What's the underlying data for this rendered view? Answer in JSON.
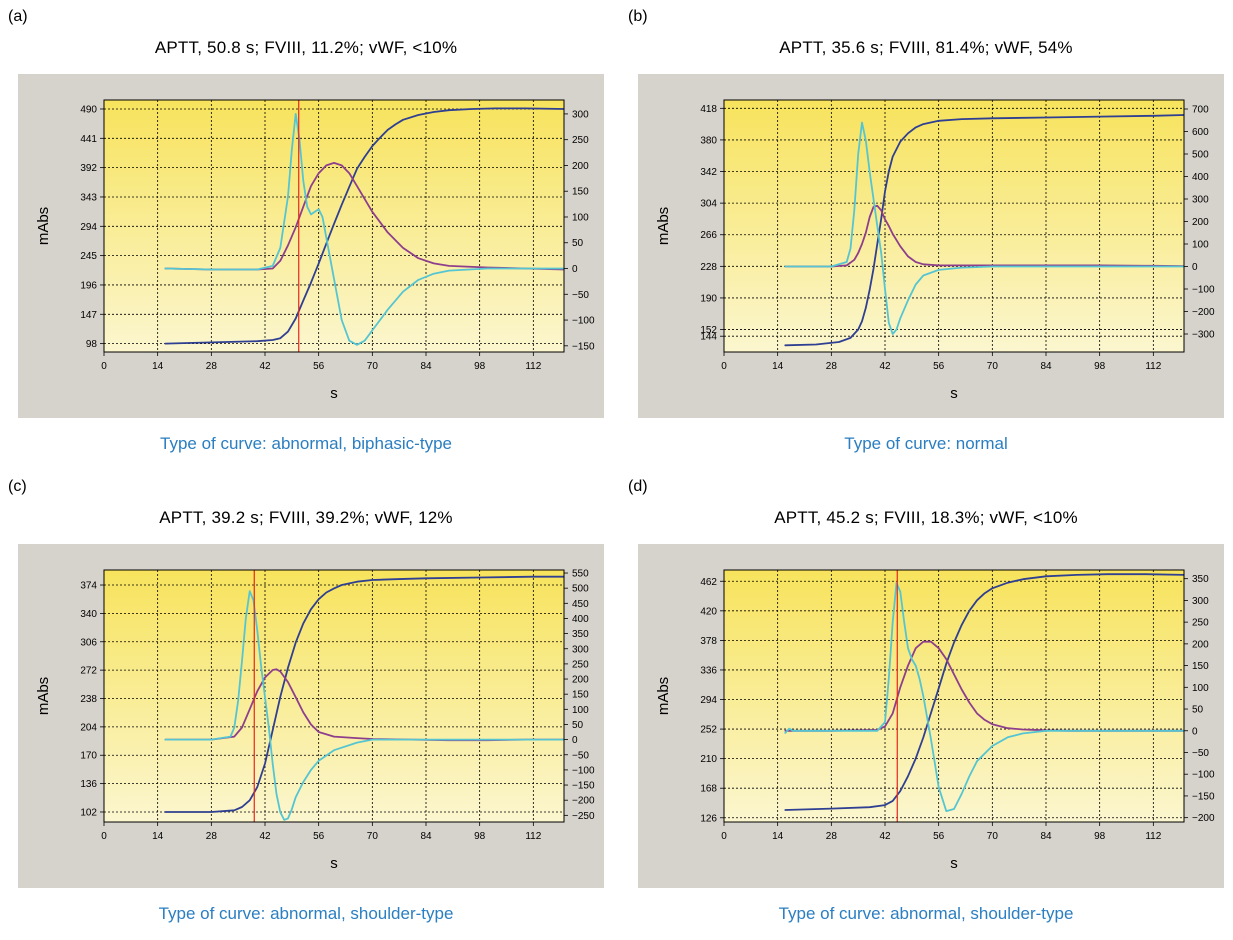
{
  "colors": {
    "frame_bg": "#d6d2cc",
    "plot_top": "#f7e35c",
    "plot_bottom": "#fbf6cf",
    "absorbance": "#2f3f91",
    "first_derivative": "#8e3f8c",
    "second_derivative": "#56c5d2",
    "marker": "#e8261c",
    "caption": "#2a7ec1"
  },
  "chart_data": [
    {
      "panel_label": "(a)",
      "type": "line",
      "title": "APTT, 50.8 s; FVIII, 11.2%; vWF, <10%",
      "caption": "Type of curve: abnormal, biphasic-type",
      "xlabel": "s",
      "ylabel": "mAbs",
      "xlim": [
        0,
        120
      ],
      "x_ticks": [
        "0",
        "14",
        "28",
        "42",
        "56",
        "70",
        "84",
        "98",
        "112"
      ],
      "y_left_lim": [
        84,
        505
      ],
      "y_left_ticks": [
        "98",
        "147",
        "196",
        "245",
        "294",
        "343",
        "392",
        "441",
        "490"
      ],
      "y_right_lim": [
        -162,
        327
      ],
      "y_right_ticks": [
        "-150",
        "-100",
        "-50",
        "0",
        "50",
        "100",
        "150",
        "200",
        "250",
        "300"
      ],
      "marker_x": 50.8,
      "series": [
        {
          "axis": "left",
          "color": "#2f3f91",
          "x": [
            16,
            28,
            40,
            44,
            46,
            48,
            50,
            52,
            54,
            56,
            58,
            60,
            62,
            64,
            66,
            68,
            70,
            72,
            74,
            76,
            78,
            82,
            86,
            90,
            96,
            102,
            110,
            120
          ],
          "y": [
            98,
            100,
            102,
            104,
            107,
            118,
            140,
            170,
            200,
            232,
            265,
            298,
            330,
            360,
            390,
            410,
            428,
            442,
            455,
            464,
            472,
            480,
            485,
            488,
            490,
            491,
            491,
            490
          ]
        },
        {
          "axis": "right",
          "color": "#8e3f8c",
          "x": [
            16,
            28,
            40,
            44,
            46,
            48,
            50,
            52,
            54,
            56,
            58,
            60,
            62,
            64,
            66,
            70,
            74,
            78,
            82,
            86,
            90,
            100,
            110,
            120
          ],
          "y": [
            0,
            -2,
            -2,
            0,
            15,
            45,
            80,
            120,
            160,
            185,
            200,
            205,
            200,
            185,
            160,
            110,
            70,
            40,
            20,
            10,
            5,
            2,
            0,
            -2
          ]
        },
        {
          "axis": "right",
          "color": "#56c5d2",
          "x": [
            16,
            28,
            40,
            44,
            46,
            48,
            49,
            50,
            51,
            52,
            53,
            54,
            55,
            56,
            57,
            58,
            60,
            62,
            64,
            66,
            68,
            70,
            74,
            78,
            82,
            86,
            90,
            100,
            110,
            120
          ],
          "y": [
            0,
            -2,
            -2,
            5,
            40,
            140,
            230,
            300,
            250,
            170,
            120,
            105,
            110,
            115,
            100,
            60,
            -20,
            -100,
            -140,
            -148,
            -140,
            -120,
            -80,
            -45,
            -22,
            -10,
            -4,
            0,
            0,
            0
          ]
        }
      ]
    },
    {
      "panel_label": "(b)",
      "type": "line",
      "title": "APTT, 35.6 s; FVIII, 81.4%; vWF, 54%",
      "caption": "Type of curve: normal",
      "xlabel": "s",
      "ylabel": "mAbs",
      "xlim": [
        0,
        120
      ],
      "x_ticks": [
        "0",
        "14",
        "28",
        "42",
        "56",
        "70",
        "84",
        "98",
        "112"
      ],
      "y_left_lim": [
        125,
        428
      ],
      "y_left_ticks": [
        "144",
        "152",
        "190",
        "228",
        "266",
        "304",
        "342",
        "380",
        "418"
      ],
      "y_right_lim": [
        -380,
        740
      ],
      "y_right_ticks": [
        "-300",
        "-200",
        "-100",
        "0",
        "100",
        "200",
        "300",
        "400",
        "500",
        "600",
        "700"
      ],
      "marker_x": null,
      "series": [
        {
          "axis": "left",
          "color": "#2f3f91",
          "x": [
            16,
            24,
            30,
            33,
            35,
            36,
            37,
            38,
            39,
            40,
            41,
            42,
            43,
            44,
            46,
            48,
            50,
            52,
            56,
            62,
            70,
            84,
            98,
            112,
            120
          ],
          "y": [
            133,
            134,
            137,
            142,
            152,
            162,
            178,
            200,
            225,
            255,
            285,
            318,
            342,
            360,
            378,
            388,
            395,
            399,
            403,
            405,
            406,
            407,
            408,
            409,
            410
          ]
        },
        {
          "axis": "right",
          "color": "#8e3f8c",
          "x": [
            16,
            28,
            32,
            34,
            35,
            36,
            37,
            38,
            39,
            40,
            41,
            42,
            43,
            44,
            46,
            48,
            50,
            52,
            56,
            70,
            84,
            98,
            112,
            120
          ],
          "y": [
            0,
            0,
            5,
            30,
            60,
            100,
            150,
            220,
            265,
            270,
            250,
            210,
            180,
            145,
            90,
            45,
            20,
            10,
            5,
            5,
            5,
            5,
            3,
            2
          ]
        },
        {
          "axis": "right",
          "color": "#56c5d2",
          "x": [
            16,
            28,
            32,
            33,
            34,
            35,
            36,
            37,
            38,
            39,
            40,
            41,
            42,
            43,
            44,
            45,
            46,
            48,
            50,
            52,
            56,
            62,
            70,
            84,
            98,
            120
          ],
          "y": [
            0,
            0,
            20,
            80,
            250,
            500,
            640,
            560,
            420,
            300,
            180,
            60,
            -100,
            -250,
            -300,
            -280,
            -230,
            -150,
            -80,
            -40,
            -15,
            -5,
            0,
            0,
            0,
            0
          ]
        }
      ]
    },
    {
      "panel_label": "(c)",
      "type": "line",
      "title": "APTT, 39.2 s; FVIII, 39.2%; vWF, 12%",
      "caption": "Type of curve: abnormal, shoulder-type",
      "xlabel": "s",
      "ylabel": "mAbs",
      "xlim": [
        0,
        120
      ],
      "x_ticks": [
        "0",
        "14",
        "28",
        "42",
        "56",
        "70",
        "84",
        "98",
        "112"
      ],
      "y_left_lim": [
        90,
        392
      ],
      "y_left_ticks": [
        "102",
        "136",
        "170",
        "204",
        "238",
        "272",
        "306",
        "340",
        "374"
      ],
      "y_right_lim": [
        -272,
        560
      ],
      "y_right_ticks": [
        "-250",
        "-200",
        "-150",
        "-100",
        "-50",
        "0",
        "50",
        "100",
        "150",
        "200",
        "250",
        "300",
        "350",
        "400",
        "450",
        "500",
        "550"
      ],
      "marker_x": 39.2,
      "series": [
        {
          "axis": "left",
          "color": "#2f3f91",
          "x": [
            16,
            28,
            34,
            36,
            38,
            40,
            42,
            44,
            46,
            48,
            50,
            52,
            54,
            56,
            58,
            60,
            62,
            66,
            70,
            76,
            84,
            98,
            112,
            120
          ],
          "y": [
            102,
            102,
            104,
            108,
            116,
            132,
            160,
            200,
            240,
            275,
            305,
            328,
            345,
            357,
            365,
            370,
            374,
            378,
            380,
            381,
            382,
            383,
            384,
            384
          ]
        },
        {
          "axis": "right",
          "color": "#8e3f8c",
          "x": [
            16,
            28,
            34,
            36,
            38,
            40,
            42,
            44,
            45,
            46,
            48,
            50,
            52,
            54,
            56,
            60,
            66,
            70,
            80,
            90,
            100,
            110,
            120
          ],
          "y": [
            0,
            0,
            10,
            40,
            100,
            160,
            205,
            230,
            232,
            225,
            190,
            140,
            90,
            50,
            25,
            10,
            5,
            2,
            0,
            -2,
            -2,
            0,
            0
          ]
        },
        {
          "axis": "right",
          "color": "#56c5d2",
          "x": [
            16,
            28,
            33,
            34,
            35,
            36,
            37,
            38,
            39,
            40,
            41,
            42,
            43,
            44,
            45,
            46,
            47,
            48,
            49,
            50,
            52,
            54,
            56,
            60,
            66,
            70,
            80,
            90,
            100,
            110,
            120
          ],
          "y": [
            0,
            0,
            10,
            40,
            130,
            260,
            400,
            490,
            460,
            360,
            240,
            140,
            40,
            -80,
            -180,
            -240,
            -265,
            -260,
            -230,
            -190,
            -140,
            -100,
            -70,
            -35,
            -10,
            0,
            0,
            0,
            0,
            0,
            0
          ]
        }
      ]
    },
    {
      "panel_label": "(d)",
      "type": "line",
      "title": "APTT, 45.2 s; FVIII, 18.3%; vWF, <10%",
      "caption": "Type of curve: abnormal, shoulder-type",
      "xlabel": "s",
      "ylabel": "mAbs",
      "xlim": [
        0,
        120
      ],
      "x_ticks": [
        "0",
        "14",
        "28",
        "42",
        "56",
        "70",
        "84",
        "98",
        "112"
      ],
      "y_left_lim": [
        120,
        478
      ],
      "y_left_ticks": [
        "126",
        "168",
        "210",
        "252",
        "294",
        "336",
        "378",
        "420",
        "462"
      ],
      "y_right_lim": [
        -210,
        370
      ],
      "y_right_ticks": [
        "-200",
        "-150",
        "-100",
        "-50",
        "0",
        "50",
        "100",
        "150",
        "200",
        "250",
        "300",
        "350"
      ],
      "marker_x": 45.2,
      "series": [
        {
          "axis": "left",
          "color": "#2f3f91",
          "x": [
            16,
            28,
            38,
            42,
            44,
            46,
            48,
            50,
            52,
            54,
            56,
            58,
            60,
            62,
            64,
            66,
            68,
            70,
            74,
            78,
            84,
            92,
            100,
            110,
            120
          ],
          "y": [
            137,
            139,
            141,
            144,
            150,
            164,
            185,
            210,
            240,
            275,
            310,
            345,
            375,
            400,
            420,
            435,
            445,
            452,
            460,
            465,
            469,
            471,
            472,
            472,
            471
          ]
        },
        {
          "axis": "right",
          "color": "#8e3f8c",
          "x": [
            16,
            28,
            40,
            42,
            44,
            46,
            48,
            50,
            52,
            54,
            56,
            58,
            60,
            62,
            64,
            66,
            68,
            70,
            74,
            78,
            84,
            90,
            100,
            110,
            120
          ],
          "y": [
            0,
            0,
            2,
            10,
            40,
            100,
            150,
            190,
            205,
            205,
            190,
            165,
            130,
            95,
            65,
            40,
            25,
            15,
            6,
            3,
            1,
            0,
            0,
            0,
            0
          ]
        },
        {
          "axis": "right",
          "color": "#56c5d2",
          "x": [
            16,
            17,
            18,
            28,
            40,
            42,
            43,
            44,
            45,
            46,
            47,
            48,
            49,
            50,
            51,
            52,
            54,
            56,
            58,
            60,
            62,
            64,
            66,
            70,
            74,
            78,
            84,
            90,
            100,
            110,
            120
          ],
          "y": [
            -5,
            5,
            0,
            0,
            0,
            20,
            120,
            250,
            340,
            320,
            250,
            190,
            165,
            150,
            120,
            80,
            -20,
            -130,
            -185,
            -180,
            -145,
            -105,
            -70,
            -35,
            -15,
            -6,
            0,
            0,
            0,
            0,
            0
          ]
        }
      ]
    }
  ]
}
